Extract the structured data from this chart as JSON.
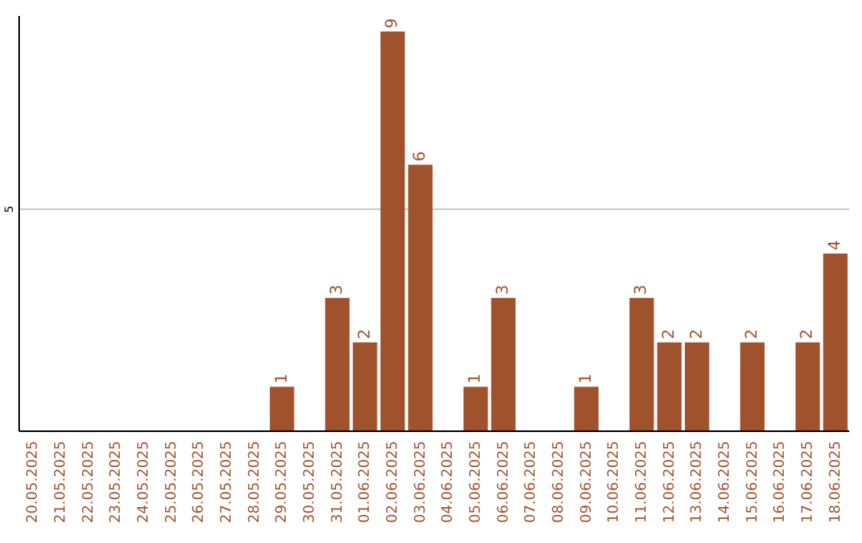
{
  "chart_data": {
    "type": "bar",
    "categories": [
      "20.05.2025",
      "21.05.2025",
      "22.05.2025",
      "23.05.2025",
      "24.05.2025",
      "25.05.2025",
      "26.05.2025",
      "27.05.2025",
      "28.05.2025",
      "29.05.2025",
      "30.05.2025",
      "31.05.2025",
      "01.06.2025",
      "02.06.2025",
      "03.06.2025",
      "04.06.2025",
      "05.06.2025",
      "06.06.2025",
      "07.06.2025",
      "08.06.2025",
      "09.06.2025",
      "10.06.2025",
      "11.06.2025",
      "12.06.2025",
      "13.06.2025",
      "14.06.2025",
      "15.06.2025",
      "16.06.2025",
      "17.06.2025",
      "18.06.2025"
    ],
    "values": [
      0,
      0,
      0,
      0,
      0,
      0,
      0,
      0,
      0,
      1,
      0,
      3,
      2,
      9,
      6,
      0,
      1,
      3,
      0,
      0,
      1,
      0,
      3,
      2,
      2,
      0,
      2,
      0,
      2,
      4
    ],
    "value_labels": [
      null,
      null,
      null,
      null,
      null,
      null,
      null,
      null,
      null,
      "1",
      null,
      "3",
      "2",
      "9",
      "6",
      null,
      "1",
      "3",
      null,
      null,
      "1",
      null,
      "3",
      "2",
      "2",
      null,
      "2",
      null,
      "2",
      "4"
    ],
    "color": "#a0522d",
    "ylim": [
      0,
      9.35
    ],
    "yticks": [
      5
    ],
    "grid": "y"
  }
}
